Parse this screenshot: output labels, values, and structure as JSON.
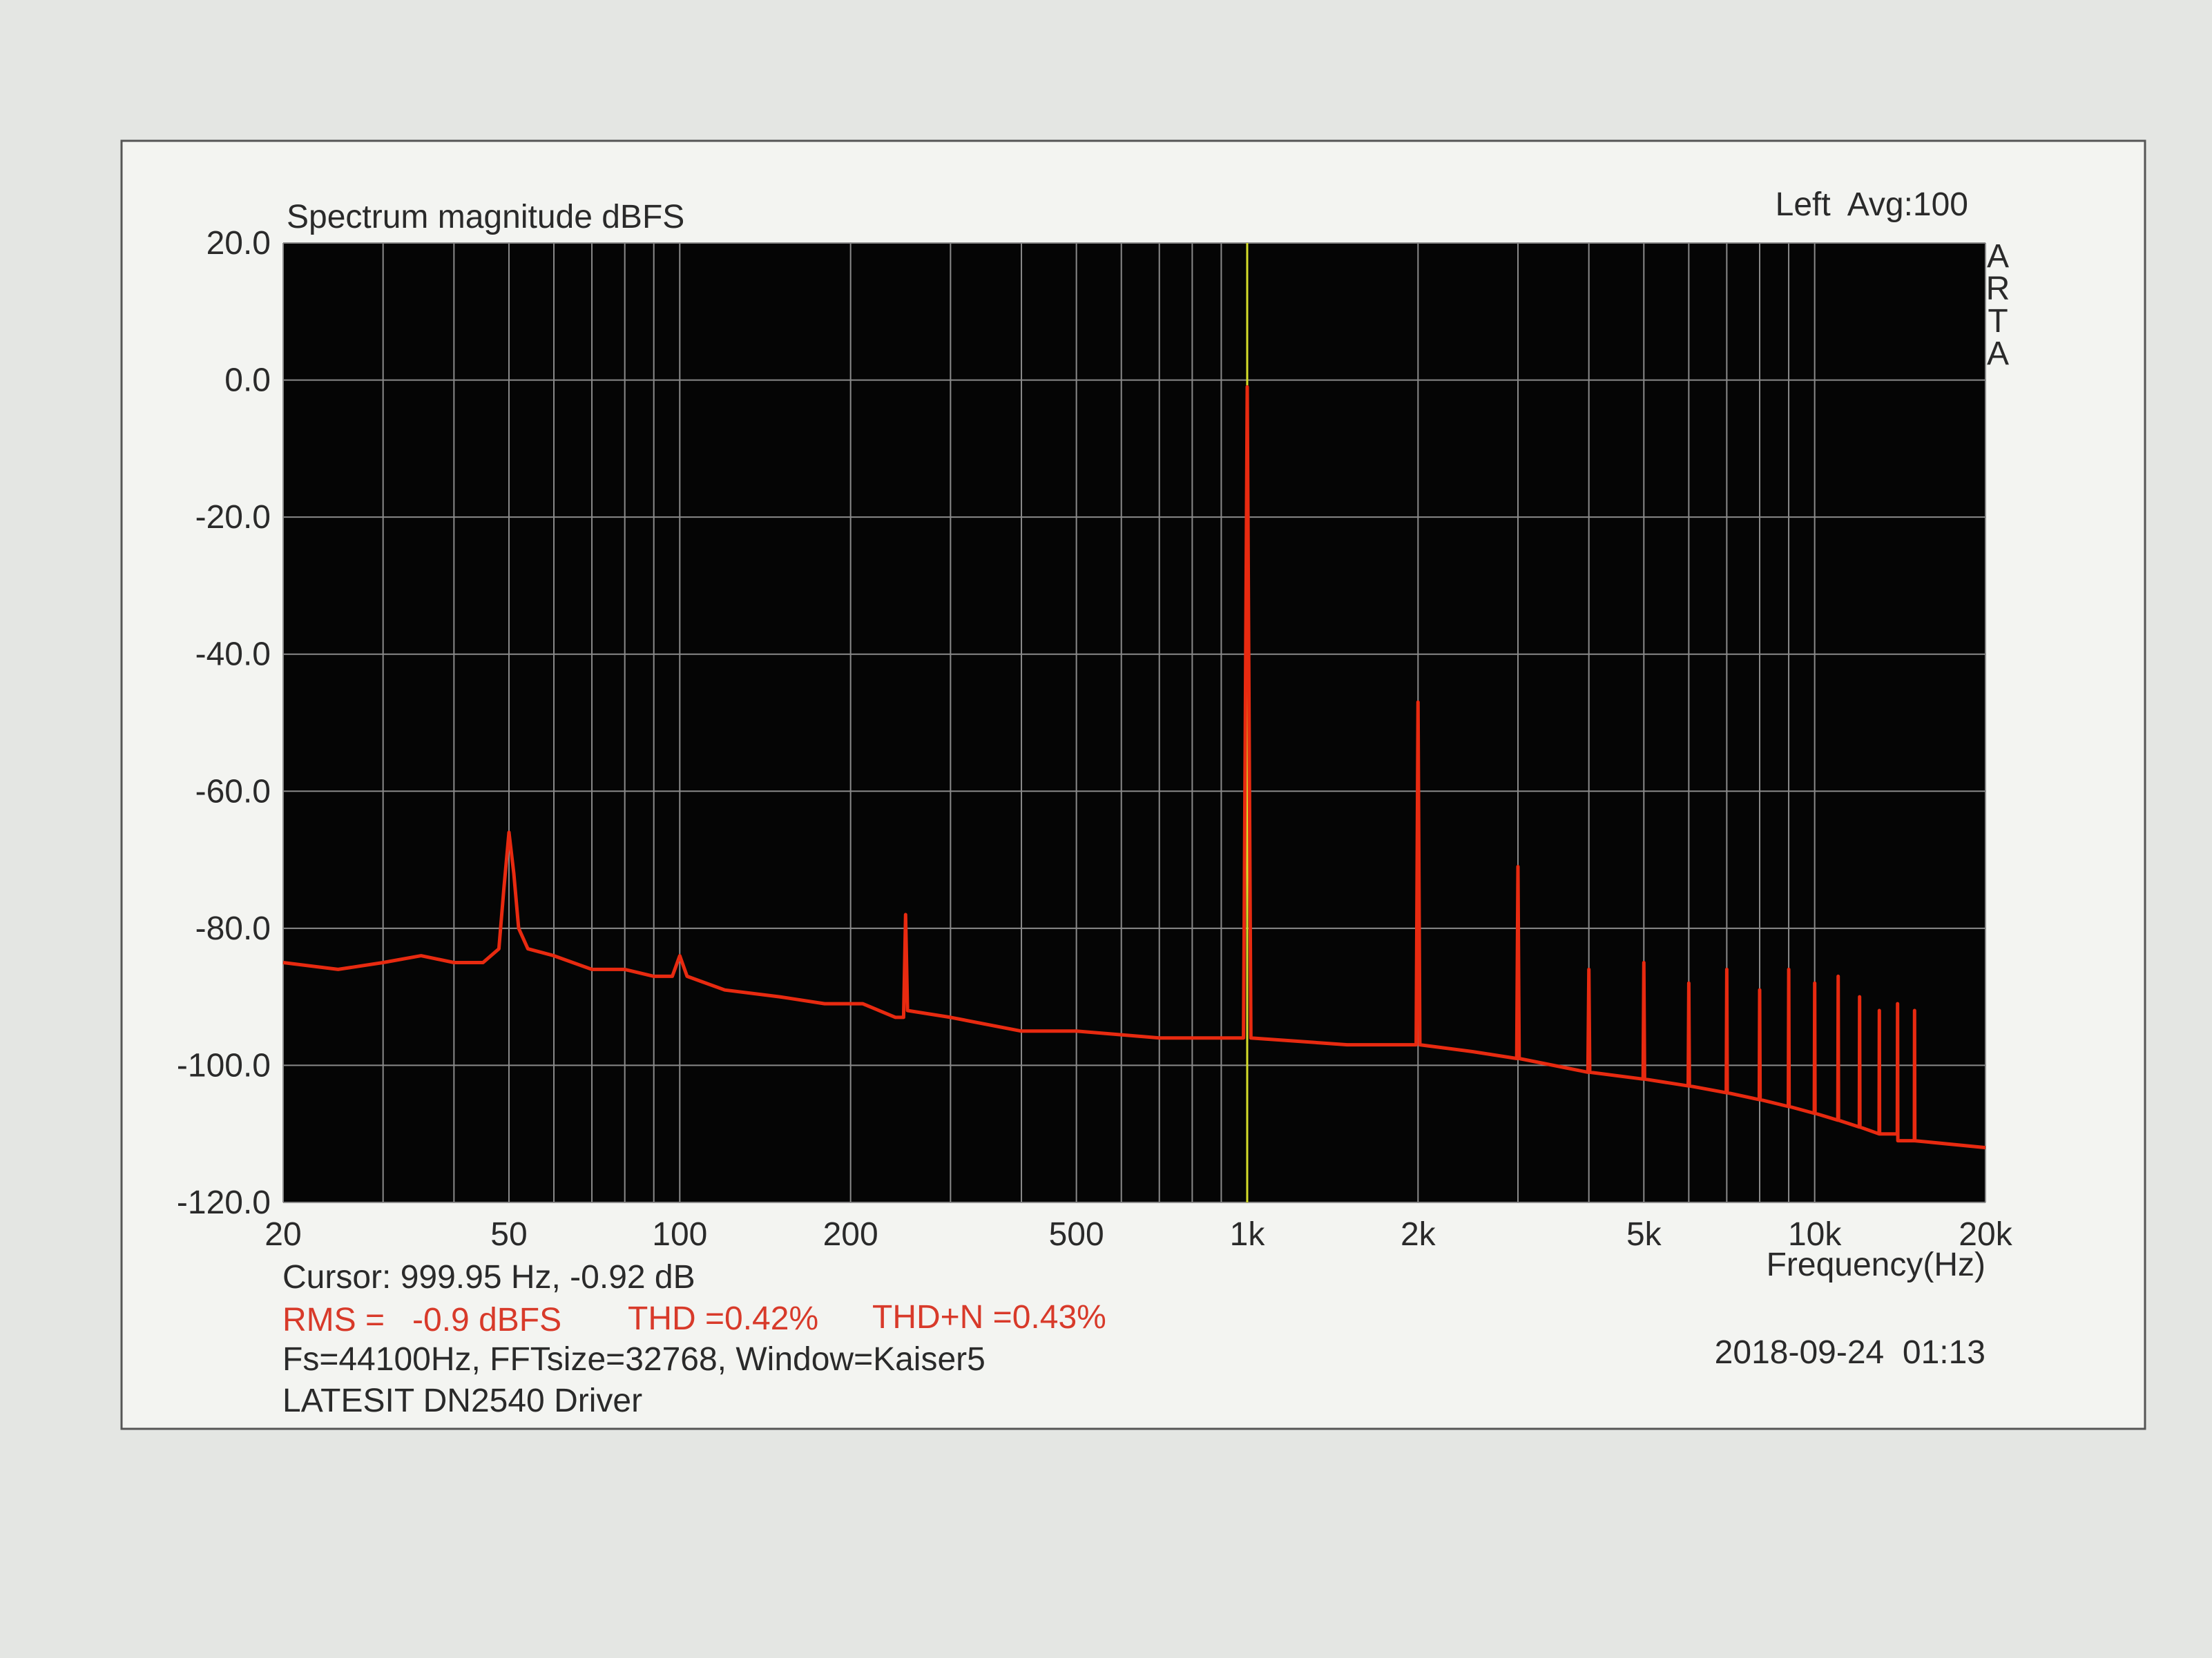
{
  "chart_data": {
    "type": "line",
    "title": "Spectrum magnitude dBFS",
    "header_right": "Left  Avg:100",
    "watermark": "ARTA",
    "x_label": "Frequency(Hz)",
    "x_scale": "log",
    "grid": true,
    "xlim": [
      20,
      20000
    ],
    "ylim": [
      -120,
      20
    ],
    "xticks": [
      20,
      50,
      100,
      200,
      500,
      {
        "value": 1000,
        "label": "1k"
      },
      {
        "value": 2000,
        "label": "2k"
      },
      {
        "value": 5000,
        "label": "5k"
      },
      {
        "value": 10000,
        "label": "10k"
      },
      {
        "value": 20000,
        "label": "20k"
      }
    ],
    "x_minor_grid": [
      30,
      40,
      60,
      70,
      80,
      90,
      300,
      400,
      600,
      700,
      800,
      900,
      3000,
      4000,
      6000,
      7000,
      8000,
      9000
    ],
    "yticks": [
      {
        "value": 20,
        "label": "20.0"
      },
      {
        "value": 0,
        "label": "0.0"
      },
      {
        "value": -20,
        "label": "-20.0"
      },
      {
        "value": -40,
        "label": "-40.0"
      },
      {
        "value": -60,
        "label": "-60.0"
      },
      {
        "value": -80,
        "label": "-80.0"
      },
      {
        "value": -100,
        "label": "-100.0"
      },
      {
        "value": -120,
        "label": "-120.0"
      }
    ],
    "cursor_x": 999.95,
    "cursor_color": "#d4dc2a",
    "x": [
      20,
      25,
      30,
      35,
      40,
      45,
      48,
      49,
      50,
      51,
      52,
      54,
      60,
      70,
      80,
      90,
      97,
      100,
      103,
      120,
      150,
      180,
      210,
      240,
      248,
      250,
      252,
      300,
      400,
      500,
      700,
      900,
      985,
      1000,
      1015,
      1500,
      1985,
      2000,
      2015,
      2500,
      2985,
      3000,
      3015,
      3985,
      4000,
      4015,
      4985,
      5000,
      5015,
      5985,
      6000,
      6015,
      6985,
      7000,
      7015,
      7985,
      8000,
      8015,
      8985,
      9000,
      9015,
      9985,
      10000,
      10015,
      10985,
      11000,
      11015,
      11985,
      12000,
      12015,
      12985,
      13000,
      13015,
      13985,
      14000,
      14015,
      14985,
      15000,
      15015,
      20000
    ],
    "series": [
      {
        "name": "Left",
        "color": "#e82a10",
        "values": [
          -85,
          -86,
          -85,
          -84,
          -85,
          -85,
          -83,
          -74,
          -66,
          -72,
          -80,
          -83,
          -84,
          -86,
          -86,
          -87,
          -87,
          -84,
          -87,
          -89,
          -90,
          -91,
          -91,
          -93,
          -93,
          -78,
          -92,
          -93,
          -95,
          -95,
          -96,
          -96,
          -96,
          -1,
          -96,
          -97,
          -97,
          -47,
          -97,
          -98,
          -99,
          -71,
          -99,
          -101,
          -86,
          -101,
          -102,
          -85,
          -102,
          -103,
          -88,
          -103,
          -104,
          -86,
          -104,
          -105,
          -89,
          -105,
          -106,
          -86,
          -106,
          -107,
          -88,
          -107,
          -108,
          -87,
          -108,
          -109,
          -90,
          -109,
          -110,
          -92,
          -110,
          -110,
          -91,
          -111,
          -111,
          -92,
          -111,
          -112
        ]
      }
    ],
    "annotations": {
      "cursor": "Cursor: 999.95 Hz, -0.92 dB",
      "rms": "RMS =   -0.9 dBFS",
      "thd": "THD =0.42%",
      "thdn": "THD+N =0.43%",
      "settings": "Fs=44100Hz, FFTsize=32768, Window=Kaiser5",
      "device": "LATESIT DN2540 Driver",
      "timestamp": "2018-09-24  01:13"
    }
  }
}
